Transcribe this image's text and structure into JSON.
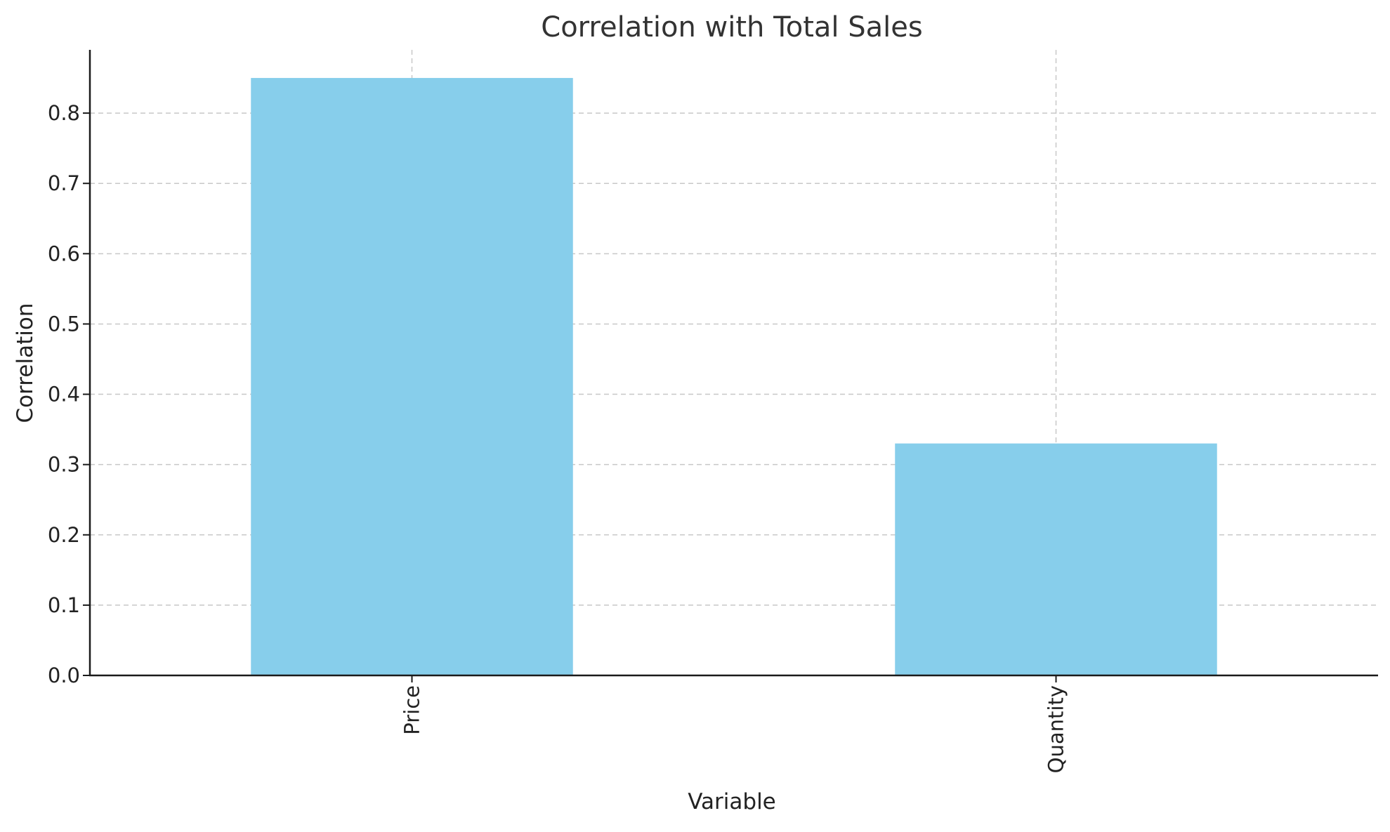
{
  "chart_data": {
    "type": "bar",
    "title": "Correlation with Total Sales",
    "xlabel": "Variable",
    "ylabel": "Correlation",
    "categories": [
      "Price",
      "Quantity"
    ],
    "values": [
      0.85,
      0.33
    ],
    "ylim": [
      0,
      0.89
    ],
    "yticks": [
      0.0,
      0.1,
      0.2,
      0.3,
      0.4,
      0.5,
      0.6,
      0.7,
      0.8
    ],
    "ytick_labels": [
      "0.0",
      "0.1",
      "0.2",
      "0.3",
      "0.4",
      "0.5",
      "0.6",
      "0.7",
      "0.8"
    ],
    "x_tick_rotation_deg": 90,
    "grid": true,
    "bar_color": "#87CEEB"
  }
}
